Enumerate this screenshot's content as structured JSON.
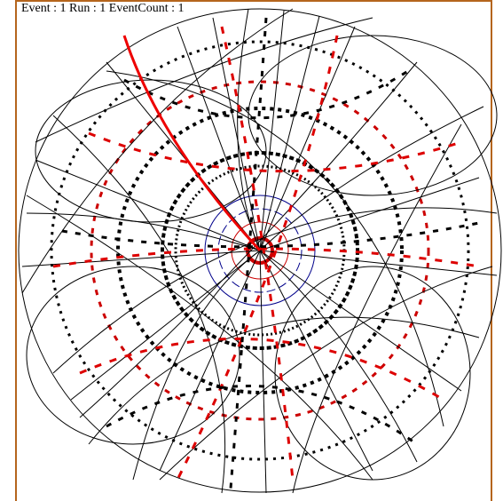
{
  "header": {
    "title": "Event : 1 Run : 1 EventCount : 1"
  }
}
